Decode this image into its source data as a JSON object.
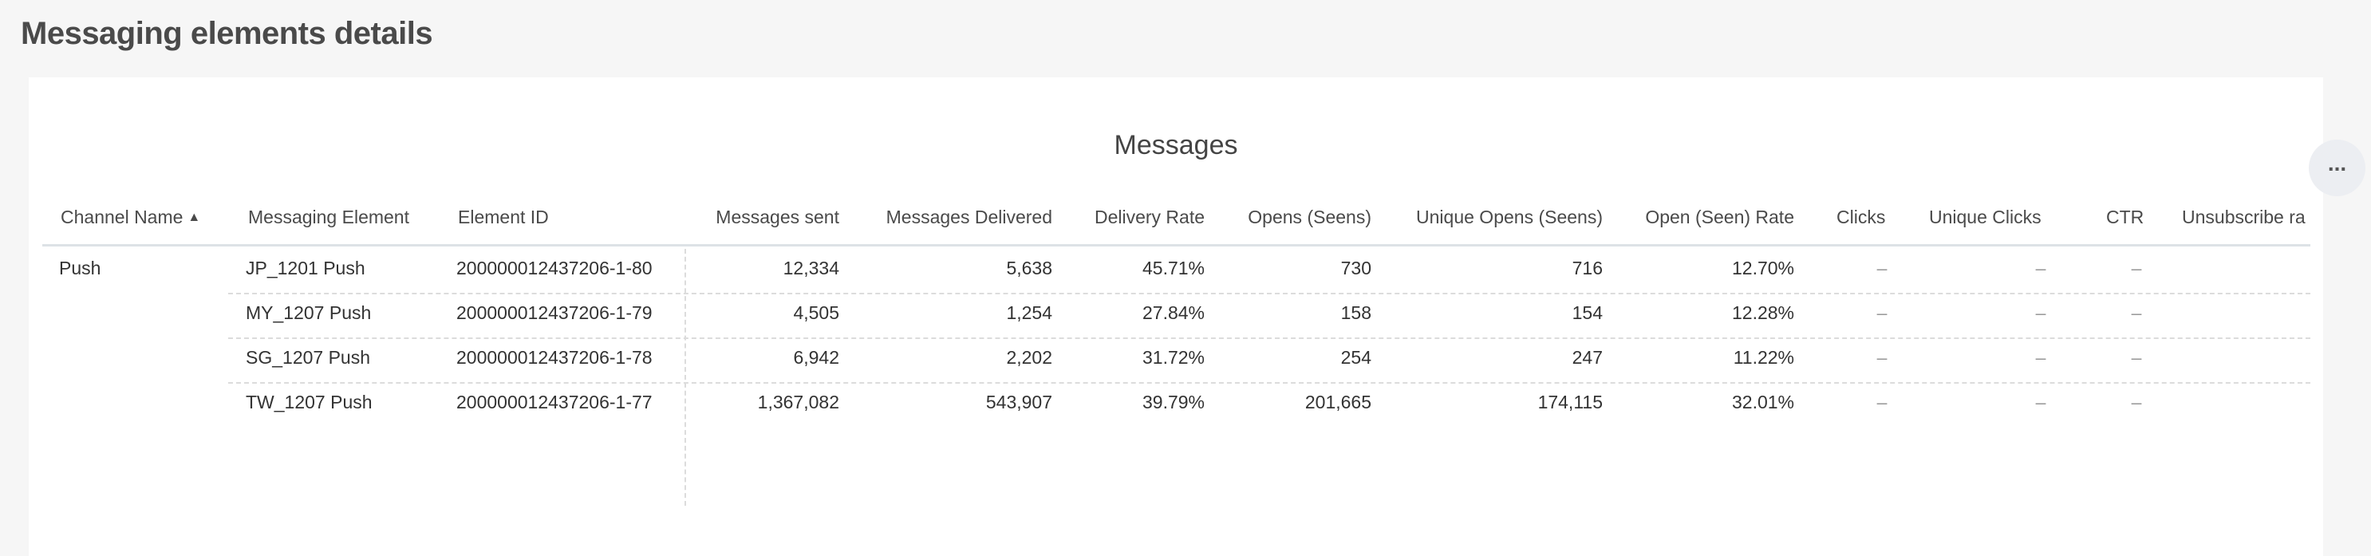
{
  "page_title": "Messaging elements details",
  "card": {
    "title": "Messages",
    "more_label": "...",
    "more_icon": "more-horizontal-icon"
  },
  "table": {
    "columns": [
      "Channel Name",
      "Messaging Element",
      "Element ID",
      "Messages sent",
      "Messages Delivered",
      "Delivery Rate",
      "Opens (Seens)",
      "Unique Opens (Seens)",
      "Open (Seen) Rate",
      "Clicks",
      "Unique Clicks",
      "CTR",
      "Unsubscribe ra"
    ],
    "sort_indicator": "▲",
    "sorted_column": "Channel Name",
    "rows": [
      [
        "Push",
        "JP_1201 Push",
        "200000012437206-1-80",
        "12,334",
        "5,638",
        "45.71%",
        "730",
        "716",
        "12.70%",
        "–",
        "–",
        "–",
        ""
      ],
      [
        "",
        "MY_1207 Push",
        "200000012437206-1-79",
        "4,505",
        "1,254",
        "27.84%",
        "158",
        "154",
        "12.28%",
        "–",
        "–",
        "–",
        ""
      ],
      [
        "",
        "SG_1207 Push",
        "200000012437206-1-78",
        "6,942",
        "2,202",
        "31.72%",
        "254",
        "247",
        "11.22%",
        "–",
        "–",
        "–",
        ""
      ],
      [
        "",
        "TW_1207 Push",
        "200000012437206-1-77",
        "1,367,082",
        "543,907",
        "39.79%",
        "201,665",
        "174,115",
        "32.01%",
        "–",
        "–",
        "–",
        ""
      ]
    ]
  }
}
